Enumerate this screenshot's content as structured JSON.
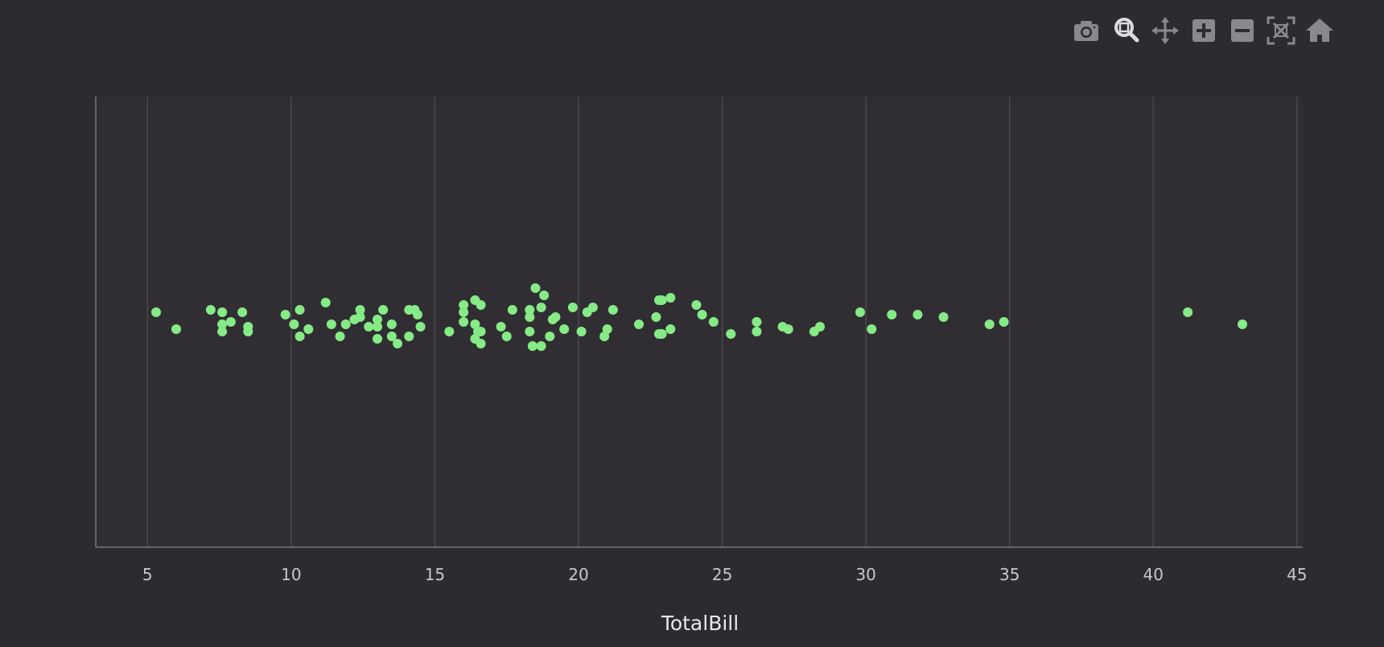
{
  "toolbar": {
    "buttons": [
      {
        "name": "camera-icon",
        "label": "Download plot as a png"
      },
      {
        "name": "zoom-icon",
        "label": "Zoom"
      },
      {
        "name": "pan-icon",
        "label": "Pan"
      },
      {
        "name": "zoom-in-icon",
        "label": "Zoom in"
      },
      {
        "name": "zoom-out-icon",
        "label": "Zoom out"
      },
      {
        "name": "autoscale-icon",
        "label": "Autoscale"
      },
      {
        "name": "reset-axes-icon",
        "label": "Reset axes"
      }
    ]
  },
  "colors": {
    "background": "#2d2b30",
    "plot_background": "#302e33",
    "marker": "#86eb86",
    "grid": "#4a484d",
    "axis": "#7a787d"
  },
  "chart_data": {
    "type": "scatter",
    "xlabel": "TotalBill",
    "xlim": [
      3.2,
      45.2
    ],
    "xticks": [
      5,
      10,
      15,
      20,
      25,
      30,
      35,
      40,
      45
    ],
    "grid": true,
    "points": [
      [
        5.3,
        0.04
      ],
      [
        6.0,
        -0.03
      ],
      [
        7.2,
        0.05
      ],
      [
        7.6,
        0.04
      ],
      [
        7.6,
        -0.01
      ],
      [
        7.6,
        -0.04
      ],
      [
        7.9,
        0.0
      ],
      [
        8.3,
        0.04
      ],
      [
        8.5,
        -0.02
      ],
      [
        8.5,
        -0.04
      ],
      [
        9.8,
        0.03
      ],
      [
        10.1,
        -0.01
      ],
      [
        10.3,
        0.05
      ],
      [
        10.3,
        -0.06
      ],
      [
        10.6,
        -0.03
      ],
      [
        11.2,
        0.08
      ],
      [
        11.4,
        -0.01
      ],
      [
        11.7,
        -0.06
      ],
      [
        11.9,
        -0.01
      ],
      [
        12.2,
        0.01
      ],
      [
        12.4,
        0.05
      ],
      [
        12.4,
        0.02
      ],
      [
        12.7,
        -0.02
      ],
      [
        13.0,
        0.01
      ],
      [
        13.0,
        -0.02
      ],
      [
        13.0,
        -0.07
      ],
      [
        13.2,
        0.05
      ],
      [
        13.5,
        -0.01
      ],
      [
        13.5,
        -0.06
      ],
      [
        13.7,
        -0.09
      ],
      [
        14.1,
        0.05
      ],
      [
        14.1,
        -0.06
      ],
      [
        14.3,
        0.05
      ],
      [
        14.4,
        0.03
      ],
      [
        14.5,
        -0.02
      ],
      [
        15.5,
        -0.04
      ],
      [
        16.0,
        0.04
      ],
      [
        16.0,
        0.07
      ],
      [
        16.0,
        0.0
      ],
      [
        16.4,
        0.09
      ],
      [
        16.4,
        -0.01
      ],
      [
        16.4,
        -0.07
      ],
      [
        16.5,
        -0.04
      ],
      [
        16.6,
        -0.04
      ],
      [
        16.6,
        0.07
      ],
      [
        16.6,
        -0.09
      ],
      [
        17.3,
        -0.02
      ],
      [
        17.5,
        -0.06
      ],
      [
        17.7,
        0.05
      ],
      [
        18.3,
        0.05
      ],
      [
        18.3,
        0.02
      ],
      [
        18.3,
        -0.04
      ],
      [
        18.4,
        -0.1
      ],
      [
        18.5,
        0.14
      ],
      [
        18.7,
        0.06
      ],
      [
        18.7,
        -0.1
      ],
      [
        18.8,
        0.11
      ],
      [
        19.0,
        -0.06
      ],
      [
        19.1,
        0.01
      ],
      [
        19.2,
        0.02
      ],
      [
        19.5,
        -0.03
      ],
      [
        19.8,
        0.06
      ],
      [
        20.1,
        -0.04
      ],
      [
        20.3,
        0.04
      ],
      [
        20.5,
        0.06
      ],
      [
        20.9,
        -0.06
      ],
      [
        21.0,
        -0.03
      ],
      [
        21.2,
        0.05
      ],
      [
        22.1,
        -0.01
      ],
      [
        22.7,
        0.02
      ],
      [
        22.8,
        0.09
      ],
      [
        22.8,
        -0.05
      ],
      [
        22.9,
        0.09
      ],
      [
        22.9,
        -0.05
      ],
      [
        23.2,
        0.1
      ],
      [
        23.2,
        -0.03
      ],
      [
        24.1,
        0.07
      ],
      [
        24.3,
        0.03
      ],
      [
        24.7,
        0.0
      ],
      [
        25.3,
        -0.05
      ],
      [
        26.2,
        0.0
      ],
      [
        26.2,
        -0.04
      ],
      [
        27.1,
        -0.02
      ],
      [
        27.3,
        -0.03
      ],
      [
        28.2,
        -0.04
      ],
      [
        28.4,
        -0.02
      ],
      [
        29.8,
        0.04
      ],
      [
        30.2,
        -0.03
      ],
      [
        30.9,
        0.03
      ],
      [
        31.8,
        0.03
      ],
      [
        32.7,
        0.02
      ],
      [
        34.3,
        -0.01
      ],
      [
        34.8,
        0.0
      ],
      [
        41.2,
        0.04
      ],
      [
        43.1,
        -0.01
      ]
    ]
  }
}
